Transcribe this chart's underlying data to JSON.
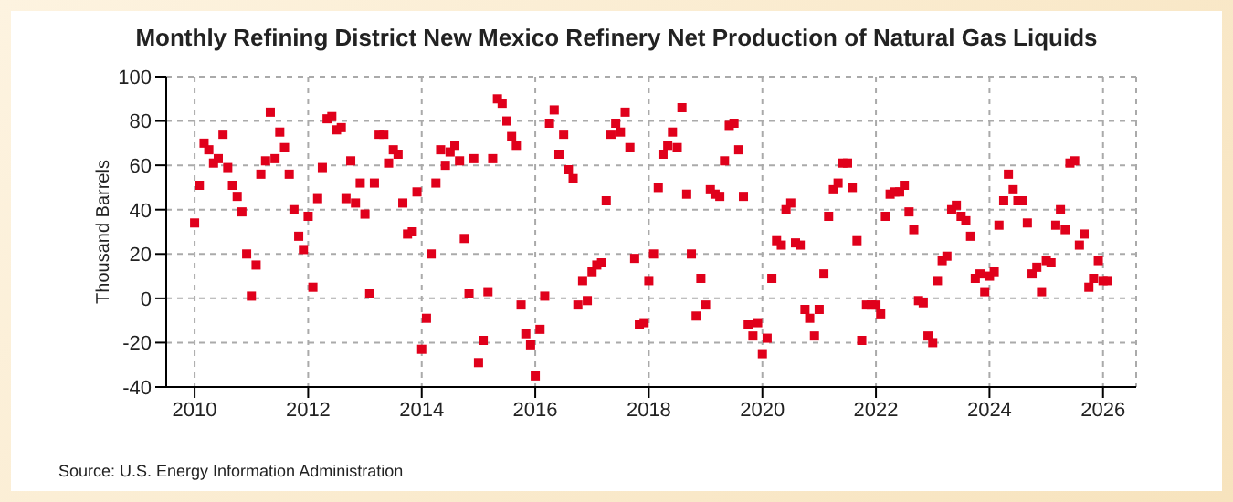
{
  "chart_data": {
    "type": "scatter",
    "title": "Monthly Refining District New Mexico Refinery Net Production of Natural Gas Liquids",
    "ylabel": "Thousand Barrels",
    "annotations": [
      "Source: U.S. Energy Information Administration"
    ],
    "xlim": [
      "2009-07",
      "2026-08"
    ],
    "xticks": [
      "2010",
      "2012",
      "2014",
      "2016",
      "2018",
      "2020",
      "2022",
      "2024",
      "2026"
    ],
    "ylim": [
      -40,
      100
    ],
    "yticks": [
      -40,
      -20,
      0,
      20,
      40,
      60,
      80,
      100
    ],
    "grid": true,
    "marker": "square",
    "legend": false,
    "x": [
      "2010-01",
      "2010-02",
      "2010-03",
      "2010-04",
      "2010-05",
      "2010-06",
      "2010-07",
      "2010-08",
      "2010-09",
      "2010-10",
      "2010-11",
      "2010-12",
      "2011-01",
      "2011-02",
      "2011-03",
      "2011-04",
      "2011-05",
      "2011-06",
      "2011-07",
      "2011-08",
      "2011-09",
      "2011-10",
      "2011-11",
      "2011-12",
      "2012-01",
      "2012-02",
      "2012-03",
      "2012-04",
      "2012-05",
      "2012-06",
      "2012-07",
      "2012-08",
      "2012-09",
      "2012-10",
      "2012-11",
      "2012-12",
      "2013-01",
      "2013-02",
      "2013-03",
      "2013-04",
      "2013-05",
      "2013-06",
      "2013-07",
      "2013-08",
      "2013-09",
      "2013-10",
      "2013-11",
      "2013-12",
      "2014-01",
      "2014-02",
      "2014-03",
      "2014-04",
      "2014-05",
      "2014-06",
      "2014-07",
      "2014-08",
      "2014-09",
      "2014-10",
      "2014-11",
      "2014-12",
      "2015-01",
      "2015-02",
      "2015-03",
      "2015-04",
      "2015-05",
      "2015-06",
      "2015-07",
      "2015-08",
      "2015-09",
      "2015-10",
      "2015-11",
      "2015-12",
      "2016-01",
      "2016-02",
      "2016-03",
      "2016-04",
      "2016-05",
      "2016-06",
      "2016-07",
      "2016-08",
      "2016-09",
      "2016-10",
      "2016-11",
      "2016-12",
      "2017-01",
      "2017-02",
      "2017-03",
      "2017-04",
      "2017-05",
      "2017-06",
      "2017-07",
      "2017-08",
      "2017-09",
      "2017-10",
      "2017-11",
      "2017-12",
      "2018-01",
      "2018-02",
      "2018-03",
      "2018-04",
      "2018-05",
      "2018-06",
      "2018-07",
      "2018-08",
      "2018-09",
      "2018-10",
      "2018-11",
      "2018-12",
      "2019-01",
      "2019-02",
      "2019-03",
      "2019-04",
      "2019-05",
      "2019-06",
      "2019-07",
      "2019-08",
      "2019-09",
      "2019-10",
      "2019-11",
      "2019-12",
      "2020-01",
      "2020-02",
      "2020-03",
      "2020-04",
      "2020-05",
      "2020-06",
      "2020-07",
      "2020-08",
      "2020-09",
      "2020-10",
      "2020-11",
      "2020-12",
      "2021-01",
      "2021-02",
      "2021-03",
      "2021-04",
      "2021-05",
      "2021-06",
      "2021-07",
      "2021-08",
      "2021-09",
      "2021-10",
      "2021-11",
      "2021-12",
      "2022-01",
      "2022-02",
      "2022-03",
      "2022-04",
      "2022-05",
      "2022-06",
      "2022-07",
      "2022-08",
      "2022-09",
      "2022-10",
      "2022-11",
      "2022-12",
      "2023-01",
      "2023-02",
      "2023-03",
      "2023-04",
      "2023-05",
      "2023-06",
      "2023-07",
      "2023-08",
      "2023-09",
      "2023-10",
      "2023-11",
      "2023-12",
      "2024-01",
      "2024-02",
      "2024-03",
      "2024-04",
      "2024-05",
      "2024-06",
      "2024-07",
      "2024-08",
      "2024-09",
      "2024-10",
      "2024-11",
      "2024-12",
      "2025-01",
      "2025-02",
      "2025-03",
      "2025-04",
      "2025-05",
      "2025-06",
      "2025-07",
      "2025-08",
      "2025-09",
      "2025-10",
      "2025-11",
      "2025-12",
      "2026-01",
      "2026-02"
    ],
    "series": [
      {
        "color": "#e0001b",
        "values": [
          34,
          51,
          70,
          67,
          61,
          63,
          74,
          59,
          51,
          46,
          39,
          20,
          1,
          15,
          56,
          62,
          84,
          63,
          75,
          68,
          56,
          40,
          28,
          22,
          37,
          5,
          45,
          59,
          81,
          82,
          76,
          77,
          45,
          62,
          43,
          52,
          38,
          2,
          52,
          74,
          74,
          61,
          67,
          65,
          43,
          29,
          30,
          48,
          -23,
          -9,
          20,
          52,
          67,
          60,
          66,
          69,
          62,
          27,
          2,
          63,
          -29,
          -19,
          3,
          63,
          90,
          88,
          80,
          73,
          69,
          -3,
          -16,
          -21,
          -35,
          -14,
          1,
          79,
          85,
          65,
          74,
          58,
          54,
          -3,
          8,
          -1,
          12,
          15,
          16,
          44,
          74,
          79,
          75,
          84,
          68,
          18,
          -12,
          -11,
          8,
          20,
          50,
          65,
          69,
          75,
          68,
          86,
          47,
          20,
          -8,
          9,
          -3,
          49,
          47,
          46,
          62,
          78,
          79,
          67,
          46,
          -12,
          -17,
          -11,
          -25,
          -18,
          9,
          26,
          24,
          40,
          43,
          25,
          24,
          -5,
          -9,
          -17,
          -5,
          11,
          37,
          49,
          52,
          61,
          61,
          50,
          26,
          -19,
          -3,
          -3,
          -3,
          -7,
          37,
          47,
          48,
          48,
          51,
          39,
          31,
          -1,
          -2,
          -17,
          -20,
          8,
          17,
          19,
          40,
          42,
          37,
          35,
          28,
          9,
          11,
          3,
          10,
          12,
          33,
          44,
          56,
          49,
          44,
          44,
          34,
          11,
          14,
          3,
          17,
          16,
          33,
          40,
          31,
          61,
          62,
          24,
          29,
          5,
          9,
          17,
          8,
          8
        ]
      }
    ]
  }
}
